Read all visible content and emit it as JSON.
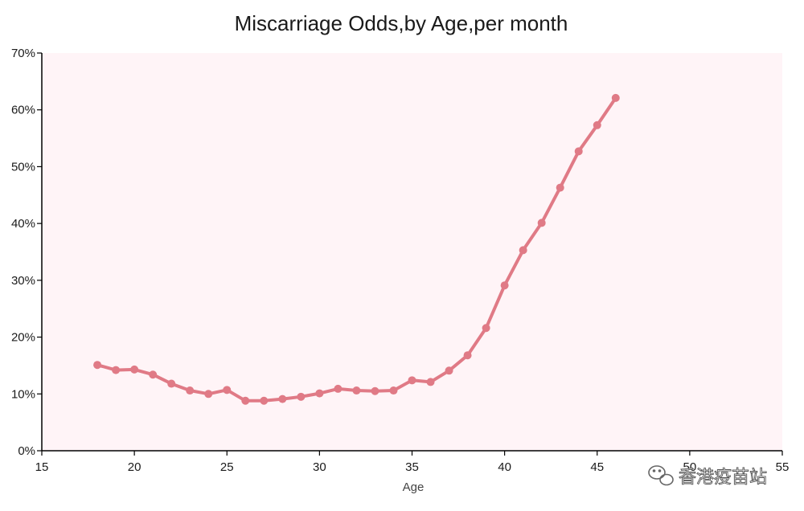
{
  "chart_data": {
    "type": "line",
    "title": "Miscarriage Odds,by Age,per month",
    "xlabel": "Age",
    "ylabel": "",
    "xlim": [
      15,
      55
    ],
    "ylim": [
      0,
      70
    ],
    "x_ticks": [
      15,
      20,
      25,
      30,
      35,
      40,
      45,
      50,
      55
    ],
    "y_ticks": [
      0,
      10,
      20,
      30,
      40,
      50,
      60,
      70
    ],
    "y_tick_labels": [
      "0%",
      "10%",
      "20%",
      "30%",
      "40%",
      "50%",
      "60%",
      "70%"
    ],
    "grid": false,
    "colors": {
      "line": "#e07a86",
      "plot_background": "#fff4f7",
      "axis": "#000000"
    },
    "series": [
      {
        "x": [
          18,
          19,
          20,
          21,
          22,
          23,
          24,
          25,
          26,
          27,
          28,
          29,
          30,
          31,
          32,
          33,
          34,
          35,
          36,
          37,
          38,
          39,
          40,
          41,
          42,
          43,
          44,
          45,
          46
        ],
        "values": [
          15.1,
          14.2,
          14.3,
          13.4,
          11.8,
          10.6,
          10.0,
          10.7,
          8.8,
          8.8,
          9.1,
          9.5,
          10.1,
          10.9,
          10.6,
          10.5,
          10.6,
          12.4,
          12.1,
          14.1,
          16.8,
          21.6,
          29.1,
          35.3,
          40.1,
          46.3,
          52.7,
          57.3,
          62.1
        ]
      }
    ]
  },
  "watermark": {
    "text": "香港疫苗站",
    "icon": "wechat-icon"
  }
}
